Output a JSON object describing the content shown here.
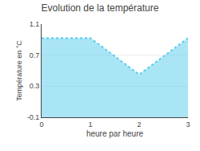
{
  "chart_data": {
    "type": "area",
    "title": "Evolution de la température",
    "xlabel": "heure par heure",
    "ylabel": "Température en °C",
    "x": [
      0,
      1,
      2,
      3
    ],
    "values": [
      0.92,
      0.92,
      0.45,
      0.92
    ],
    "color": "#55ccee",
    "line_style": "dotted",
    "xlim": [
      0,
      3
    ],
    "ylim": [
      -0.1,
      1.1
    ],
    "xticks": [
      0,
      1,
      2,
      3
    ],
    "yticks": [
      -0.1,
      0.3,
      0.7,
      1.1
    ],
    "grid": true
  }
}
